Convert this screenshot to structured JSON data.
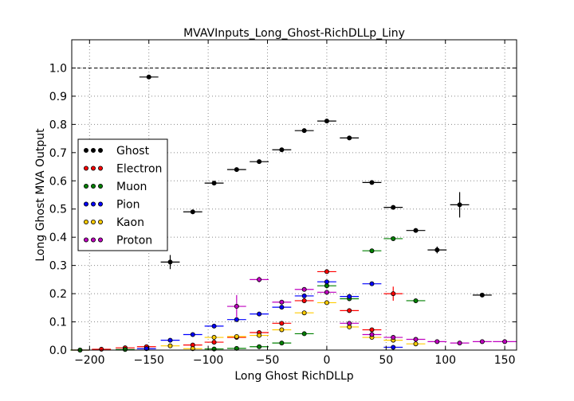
{
  "chart_data": {
    "type": "scatter",
    "title": "MVAVInputs_Long_Ghost-RichDLLp_Liny",
    "xlabel": "Long Ghost RichDLLp",
    "ylabel": "Long Ghost MVA Output",
    "xlim": [
      -215,
      160
    ],
    "ylim": [
      0.0,
      1.1
    ],
    "xticks": [
      -200,
      -150,
      -100,
      -50,
      0,
      50,
      100,
      150
    ],
    "yticks": [
      0.0,
      0.1,
      0.2,
      0.3,
      0.4,
      0.5,
      0.6,
      0.7,
      0.8,
      0.9,
      1.0
    ],
    "xtick_labels": [
      "−200",
      "−150",
      "−100",
      "−50",
      "0",
      "50",
      "100",
      "150"
    ],
    "ytick_labels": [
      "0.0",
      "0.1",
      "0.2",
      "0.3",
      "0.4",
      "0.5",
      "0.6",
      "0.7",
      "0.8",
      "0.9",
      "1.0"
    ],
    "grid": true,
    "reference_line": 1.0,
    "legend_position": "center-left",
    "series": [
      {
        "name": "Ghost",
        "color": "#000000",
        "points": [
          {
            "x": -150,
            "y": 0.968,
            "xerr": 8,
            "yerr": 0.005
          },
          {
            "x": -132,
            "y": 0.312,
            "xerr": 8,
            "yerr": 0.025
          },
          {
            "x": -113,
            "y": 0.49,
            "xerr": 8,
            "yerr": 0.008
          },
          {
            "x": -95,
            "y": 0.592,
            "xerr": 8,
            "yerr": 0.006
          },
          {
            "x": -76,
            "y": 0.64,
            "xerr": 8,
            "yerr": 0.005
          },
          {
            "x": -57,
            "y": 0.668,
            "xerr": 8,
            "yerr": 0.005
          },
          {
            "x": -38,
            "y": 0.71,
            "xerr": 8,
            "yerr": 0.004
          },
          {
            "x": -19,
            "y": 0.778,
            "xerr": 8,
            "yerr": 0.004
          },
          {
            "x": 0,
            "y": 0.812,
            "xerr": 8,
            "yerr": 0.004
          },
          {
            "x": 19,
            "y": 0.752,
            "xerr": 8,
            "yerr": 0.004
          },
          {
            "x": 38,
            "y": 0.594,
            "xerr": 8,
            "yerr": 0.005
          },
          {
            "x": 56,
            "y": 0.506,
            "xerr": 8,
            "yerr": 0.006
          },
          {
            "x": 75,
            "y": 0.424,
            "xerr": 8,
            "yerr": 0.007
          },
          {
            "x": 93,
            "y": 0.355,
            "xerr": 8,
            "yerr": 0.012
          },
          {
            "x": 112,
            "y": 0.515,
            "xerr": 8,
            "yerr": 0.045
          },
          {
            "x": 131,
            "y": 0.195,
            "xerr": 8,
            "yerr": 0.004
          }
        ]
      },
      {
        "name": "Electron",
        "color": "#ff0000",
        "points": [
          {
            "x": -208,
            "y": 0.0,
            "xerr": 8,
            "yerr": 0.002
          },
          {
            "x": -190,
            "y": 0.003,
            "xerr": 8,
            "yerr": 0.002
          },
          {
            "x": -170,
            "y": 0.008,
            "xerr": 8,
            "yerr": 0.002
          },
          {
            "x": -152,
            "y": 0.012,
            "xerr": 8,
            "yerr": 0.002
          },
          {
            "x": -113,
            "y": 0.018,
            "xerr": 8,
            "yerr": 0.002
          },
          {
            "x": -95,
            "y": 0.028,
            "xerr": 8,
            "yerr": 0.002
          },
          {
            "x": -76,
            "y": 0.045,
            "xerr": 8,
            "yerr": 0.003
          },
          {
            "x": -57,
            "y": 0.062,
            "xerr": 8,
            "yerr": 0.003
          },
          {
            "x": -38,
            "y": 0.095,
            "xerr": 8,
            "yerr": 0.003
          },
          {
            "x": -19,
            "y": 0.175,
            "xerr": 8,
            "yerr": 0.004
          },
          {
            "x": 0,
            "y": 0.278,
            "xerr": 8,
            "yerr": 0.004
          },
          {
            "x": 19,
            "y": 0.14,
            "xerr": 8,
            "yerr": 0.004
          },
          {
            "x": 38,
            "y": 0.072,
            "xerr": 8,
            "yerr": 0.004
          },
          {
            "x": 56,
            "y": 0.2,
            "xerr": 8,
            "yerr": 0.025
          }
        ]
      },
      {
        "name": "Muon",
        "color": "#008000",
        "points": [
          {
            "x": -208,
            "y": 0.0,
            "xerr": 8,
            "yerr": 0.002
          },
          {
            "x": -170,
            "y": 0.002,
            "xerr": 8,
            "yerr": 0.002
          },
          {
            "x": -95,
            "y": 0.004,
            "xerr": 8,
            "yerr": 0.002
          },
          {
            "x": -76,
            "y": 0.006,
            "xerr": 8,
            "yerr": 0.002
          },
          {
            "x": -57,
            "y": 0.012,
            "xerr": 8,
            "yerr": 0.002
          },
          {
            "x": -38,
            "y": 0.025,
            "xerr": 8,
            "yerr": 0.003
          },
          {
            "x": -19,
            "y": 0.058,
            "xerr": 8,
            "yerr": 0.003
          },
          {
            "x": 0,
            "y": 0.228,
            "xerr": 8,
            "yerr": 0.004
          },
          {
            "x": 19,
            "y": 0.182,
            "xerr": 8,
            "yerr": 0.004
          },
          {
            "x": 38,
            "y": 0.352,
            "xerr": 8,
            "yerr": 0.004
          },
          {
            "x": 56,
            "y": 0.395,
            "xerr": 8,
            "yerr": 0.004
          },
          {
            "x": 75,
            "y": 0.175,
            "xerr": 8,
            "yerr": 0.004
          }
        ]
      },
      {
        "name": "Pion",
        "color": "#0000ff",
        "points": [
          {
            "x": -152,
            "y": 0.005,
            "xerr": 8,
            "yerr": 0.002
          },
          {
            "x": -132,
            "y": 0.035,
            "xerr": 8,
            "yerr": 0.002
          },
          {
            "x": -113,
            "y": 0.055,
            "xerr": 8,
            "yerr": 0.002
          },
          {
            "x": -95,
            "y": 0.085,
            "xerr": 8,
            "yerr": 0.003
          },
          {
            "x": -76,
            "y": 0.108,
            "xerr": 8,
            "yerr": 0.003
          },
          {
            "x": -57,
            "y": 0.128,
            "xerr": 8,
            "yerr": 0.003
          },
          {
            "x": -38,
            "y": 0.152,
            "xerr": 8,
            "yerr": 0.003
          },
          {
            "x": -19,
            "y": 0.192,
            "xerr": 8,
            "yerr": 0.003
          },
          {
            "x": 0,
            "y": 0.242,
            "xerr": 8,
            "yerr": 0.003
          },
          {
            "x": 19,
            "y": 0.19,
            "xerr": 8,
            "yerr": 0.003
          },
          {
            "x": 38,
            "y": 0.235,
            "xerr": 8,
            "yerr": 0.004
          },
          {
            "x": 56,
            "y": 0.01,
            "xerr": 8,
            "yerr": 0.002
          }
        ]
      },
      {
        "name": "Kaon",
        "color": "#ffcc00",
        "points": [
          {
            "x": -132,
            "y": 0.015,
            "xerr": 8,
            "yerr": 0.002
          },
          {
            "x": -113,
            "y": 0.005,
            "xerr": 8,
            "yerr": 0.002
          },
          {
            "x": -95,
            "y": 0.045,
            "xerr": 8,
            "yerr": 0.003
          },
          {
            "x": -76,
            "y": 0.048,
            "xerr": 8,
            "yerr": 0.003
          },
          {
            "x": -57,
            "y": 0.052,
            "xerr": 8,
            "yerr": 0.003
          },
          {
            "x": -38,
            "y": 0.072,
            "xerr": 8,
            "yerr": 0.003
          },
          {
            "x": -19,
            "y": 0.132,
            "xerr": 8,
            "yerr": 0.003
          },
          {
            "x": 0,
            "y": 0.168,
            "xerr": 8,
            "yerr": 0.004
          },
          {
            "x": 19,
            "y": 0.082,
            "xerr": 8,
            "yerr": 0.003
          },
          {
            "x": 38,
            "y": 0.045,
            "xerr": 8,
            "yerr": 0.003
          },
          {
            "x": 56,
            "y": 0.035,
            "xerr": 8,
            "yerr": 0.003
          },
          {
            "x": 75,
            "y": 0.022,
            "xerr": 8,
            "yerr": 0.003
          }
        ]
      },
      {
        "name": "Proton",
        "color": "#bf00bf",
        "points": [
          {
            "x": -76,
            "y": 0.155,
            "xerr": 8,
            "yerr": 0.04
          },
          {
            "x": -57,
            "y": 0.25,
            "xerr": 8,
            "yerr": 0.01
          },
          {
            "x": -38,
            "y": 0.17,
            "xerr": 8,
            "yerr": 0.004
          },
          {
            "x": -19,
            "y": 0.215,
            "xerr": 8,
            "yerr": 0.004
          },
          {
            "x": 0,
            "y": 0.205,
            "xerr": 8,
            "yerr": 0.004
          },
          {
            "x": 19,
            "y": 0.095,
            "xerr": 8,
            "yerr": 0.003
          },
          {
            "x": 38,
            "y": 0.055,
            "xerr": 8,
            "yerr": 0.003
          },
          {
            "x": 56,
            "y": 0.045,
            "xerr": 8,
            "yerr": 0.003
          },
          {
            "x": 75,
            "y": 0.038,
            "xerr": 8,
            "yerr": 0.003
          },
          {
            "x": 93,
            "y": 0.03,
            "xerr": 8,
            "yerr": 0.003
          },
          {
            "x": 112,
            "y": 0.025,
            "xerr": 8,
            "yerr": 0.003
          },
          {
            "x": 131,
            "y": 0.03,
            "xerr": 8,
            "yerr": 0.003
          },
          {
            "x": 150,
            "y": 0.03,
            "xerr": 10,
            "yerr": 0.003
          }
        ]
      }
    ]
  }
}
